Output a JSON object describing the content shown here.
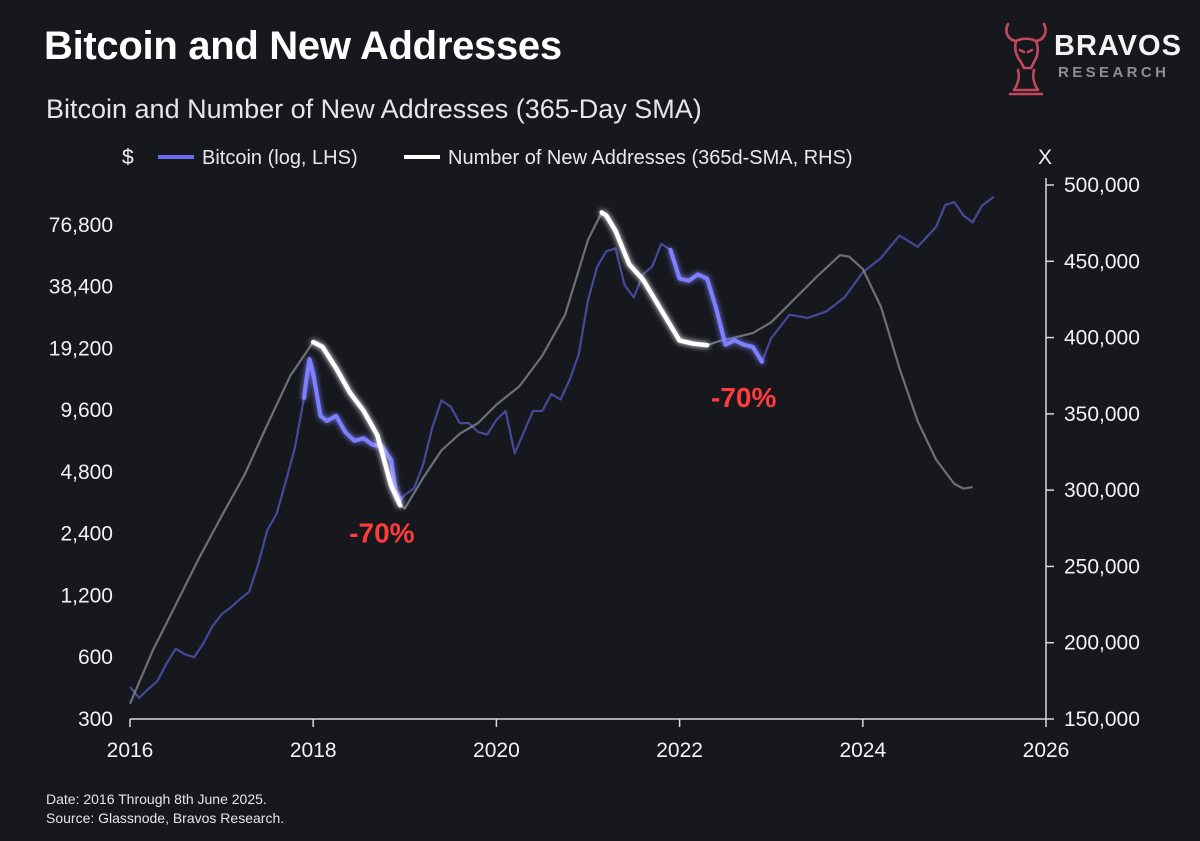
{
  "header": {
    "title": "Bitcoin and New Addresses",
    "subtitle": "Bitcoin and Number of New Addresses (365-Day SMA)"
  },
  "logo": {
    "brand": "BRAVOS",
    "sub": "RESEARCH",
    "icon": "bull-knight-icon",
    "color": "#c4495c"
  },
  "footer": {
    "date_note": "Date: 2016 Through 8th June 2025.",
    "source_note": "Source: Glassnode, Bravos Research."
  },
  "chart_data": {
    "type": "line",
    "left_axis": {
      "unit_label": "$",
      "scale": "log",
      "range": [
        300,
        120000
      ],
      "ticks": [
        300,
        600,
        1200,
        2400,
        4800,
        9600,
        19200,
        38400,
        76800
      ],
      "tick_labels": [
        "300",
        "600",
        "1,200",
        "2,400",
        "4,800",
        "9,600",
        "19,200",
        "38,400",
        "76,800"
      ]
    },
    "right_axis": {
      "unit_label": "X",
      "scale": "linear",
      "range": [
        150000,
        500000
      ],
      "ticks": [
        150000,
        200000,
        250000,
        300000,
        350000,
        400000,
        450000,
        500000
      ],
      "tick_labels": [
        "150,000",
        "200,000",
        "250,000",
        "300,000",
        "350,000",
        "400,000",
        "450,000",
        "500,000"
      ]
    },
    "x_axis": {
      "range": [
        2016,
        2026
      ],
      "ticks": [
        2016,
        2018,
        2020,
        2022,
        2024,
        2026
      ],
      "tick_labels": [
        "2016",
        "2018",
        "2020",
        "2022",
        "2024",
        "2026"
      ]
    },
    "legend": {
      "placement": "top-left",
      "entries": [
        "Bitcoin (log, LHS)",
        "Number of New Addresses (365d-SMA, RHS)"
      ]
    },
    "series": [
      {
        "name": "Bitcoin (log, LHS)",
        "axis": "left",
        "color": "#6b6cf0",
        "x": [
          2016.0,
          2016.1,
          2016.2,
          2016.3,
          2016.4,
          2016.5,
          2016.6,
          2016.7,
          2016.8,
          2016.9,
          2017.0,
          2017.1,
          2017.2,
          2017.3,
          2017.4,
          2017.5,
          2017.6,
          2017.7,
          2017.8,
          2017.9,
          2017.93,
          2017.96,
          2018.0,
          2018.08,
          2018.15,
          2018.25,
          2018.35,
          2018.45,
          2018.55,
          2018.65,
          2018.75,
          2018.85,
          2018.9,
          2018.95,
          2019.0,
          2019.1,
          2019.2,
          2019.3,
          2019.4,
          2019.5,
          2019.6,
          2019.7,
          2019.8,
          2019.9,
          2020.0,
          2020.1,
          2020.2,
          2020.3,
          2020.4,
          2020.5,
          2020.6,
          2020.7,
          2020.8,
          2020.9,
          2021.0,
          2021.1,
          2021.2,
          2021.3,
          2021.4,
          2021.5,
          2021.6,
          2021.7,
          2021.8,
          2021.9,
          2022.0,
          2022.1,
          2022.2,
          2022.3,
          2022.4,
          2022.5,
          2022.6,
          2022.7,
          2022.8,
          2022.9,
          2023.0,
          2023.2,
          2023.4,
          2023.6,
          2023.8,
          2024.0,
          2024.2,
          2024.4,
          2024.6,
          2024.8,
          2024.9,
          2025.0,
          2025.1,
          2025.2,
          2025.3,
          2025.43
        ],
        "values": [
          430,
          380,
          420,
          460,
          560,
          660,
          620,
          600,
          700,
          850,
          970,
          1050,
          1150,
          1250,
          1700,
          2500,
          3000,
          4300,
          6300,
          11000,
          14000,
          17000,
          14500,
          9000,
          8500,
          9000,
          7500,
          6800,
          7000,
          6500,
          6400,
          5500,
          3900,
          3500,
          3700,
          4000,
          5200,
          7900,
          10700,
          10000,
          8300,
          8300,
          7500,
          7300,
          8600,
          9500,
          5900,
          7500,
          9500,
          9500,
          11500,
          10800,
          13500,
          18000,
          33000,
          48000,
          57000,
          59000,
          39000,
          34000,
          44000,
          48000,
          62000,
          58000,
          42000,
          41000,
          44000,
          42000,
          30000,
          20000,
          21000,
          20000,
          19500,
          16500,
          21500,
          28000,
          27000,
          29000,
          34000,
          45000,
          53000,
          68000,
          60000,
          75000,
          96000,
          99000,
          85000,
          79000,
          95000,
          105000
        ]
      },
      {
        "name": "Number of New Addresses (365d-SMA, RHS)",
        "axis": "right",
        "color": "#f5f5f5",
        "x": [
          2016.0,
          2016.25,
          2016.5,
          2016.75,
          2017.0,
          2017.25,
          2017.5,
          2017.75,
          2018.0,
          2018.1,
          2018.25,
          2018.4,
          2018.55,
          2018.7,
          2018.85,
          2018.95,
          2019.0,
          2019.2,
          2019.4,
          2019.6,
          2019.8,
          2020.0,
          2020.25,
          2020.5,
          2020.75,
          2021.0,
          2021.15,
          2021.2,
          2021.3,
          2021.45,
          2021.6,
          2021.8,
          2022.0,
          2022.15,
          2022.3,
          2022.45,
          2022.6,
          2022.8,
          2023.0,
          2023.25,
          2023.5,
          2023.75,
          2023.85,
          2024.0,
          2024.2,
          2024.4,
          2024.6,
          2024.8,
          2025.0,
          2025.1,
          2025.2
        ],
        "values": [
          160000,
          195000,
          225000,
          255000,
          283000,
          310000,
          343000,
          375000,
          397000,
          394000,
          380000,
          364000,
          352000,
          336000,
          303000,
          290000,
          288000,
          308000,
          326000,
          337000,
          344000,
          356000,
          368000,
          388000,
          415000,
          464000,
          482000,
          480000,
          470000,
          448000,
          438000,
          418000,
          398000,
          396000,
          395000,
          398000,
          400000,
          403000,
          410000,
          425000,
          440000,
          454000,
          453000,
          445000,
          420000,
          380000,
          345000,
          320000,
          304000,
          301000,
          302000
        ]
      }
    ],
    "annotations": [
      {
        "text": "-70%",
        "x": 2018.75,
        "y": 2400,
        "axis": "left",
        "color": "#ff3b3b"
      },
      {
        "text": "-70%",
        "x": 2022.7,
        "y": 11000,
        "axis": "left",
        "color": "#ff3b3b"
      }
    ],
    "highlights": [
      {
        "series": 0,
        "x_range": [
          2017.9,
          2018.95
        ]
      },
      {
        "series": 1,
        "x_range": [
          2018.0,
          2018.95
        ]
      },
      {
        "series": 0,
        "x_range": [
          2021.85,
          2022.9
        ]
      },
      {
        "series": 1,
        "x_range": [
          2021.15,
          2022.3
        ]
      }
    ],
    "grid": false
  }
}
